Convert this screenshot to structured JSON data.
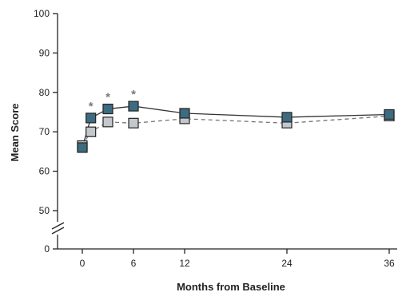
{
  "chart_data": {
    "type": "line",
    "xlabel": "Months from Baseline",
    "ylabel": "Mean Score",
    "xlim": [
      0,
      36
    ],
    "ylim": [
      45,
      100
    ],
    "x_ticks": [
      0,
      6,
      12,
      24,
      36
    ],
    "y_ticks": [
      50,
      60,
      70,
      80,
      90,
      100
    ],
    "y_break_tick": 0,
    "grid": false,
    "series": [
      {
        "style": "solid",
        "marker_color": "#3d6b80",
        "line_color": "#333333",
        "x": [
          0,
          1,
          3,
          6,
          12,
          24,
          36
        ],
        "y": [
          66,
          73.5,
          75.8,
          76.5,
          74.7,
          73.7,
          74.4
        ]
      },
      {
        "style": "dashed",
        "marker_color": "#c2c8cc",
        "line_color": "#777777",
        "x": [
          0,
          1,
          3,
          6,
          12,
          24,
          36
        ],
        "y": [
          66.5,
          70,
          72.5,
          72.2,
          73.3,
          72.2,
          74
        ]
      }
    ],
    "annotations": [
      {
        "text": "*",
        "x": 1,
        "y": 73.5
      },
      {
        "text": "*",
        "x": 3,
        "y": 75.8
      },
      {
        "text": "*",
        "x": 6,
        "y": 76.5
      }
    ]
  }
}
